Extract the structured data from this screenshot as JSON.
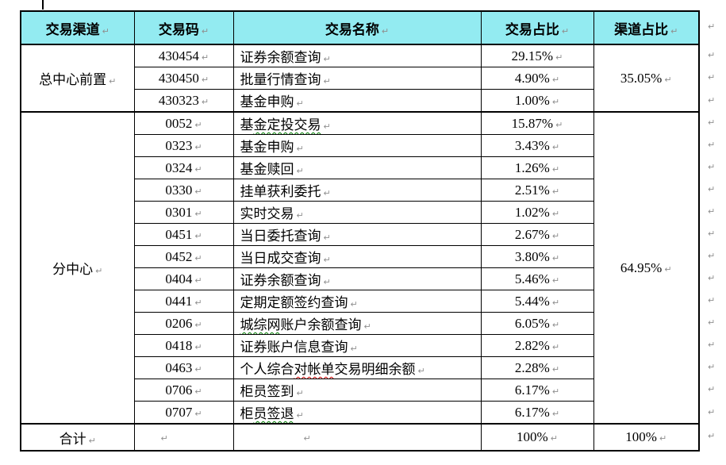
{
  "document": {
    "paragraph_mark": "↵",
    "cursor_visible": true
  },
  "colors": {
    "header_bg": "#93EBF1",
    "border": "#000000",
    "mark_gray": "#8f8f8f",
    "wavy_green": "#007d00",
    "wavy_red": "#d00000"
  },
  "table": {
    "header": {
      "columns": [
        "交易渠道",
        "交易码",
        "交易名称",
        "交易占比",
        "渠道占比"
      ]
    },
    "groups": [
      {
        "channel": "总中心前置",
        "channel_share": "35.05%",
        "rows": [
          {
            "code": "430454",
            "name": [
              {
                "t": "证券余额查询"
              }
            ],
            "share": "29.15%"
          },
          {
            "code": "430450",
            "name": [
              {
                "t": "批量行情查询"
              }
            ],
            "share": "4.90%"
          },
          {
            "code": "430323",
            "name": [
              {
                "t": "基金申购"
              }
            ],
            "share": "1.00%"
          }
        ]
      },
      {
        "channel": "分中心",
        "channel_share": "64.95%",
        "rows": [
          {
            "code": "0052",
            "name": [
              {
                "t": "基"
              },
              {
                "t": "金定投交易",
                "u": "green"
              }
            ],
            "share": "15.87%"
          },
          {
            "code": "0323",
            "name": [
              {
                "t": "基金申购"
              }
            ],
            "share": "3.43%"
          },
          {
            "code": "0324",
            "name": [
              {
                "t": "基金赎回"
              }
            ],
            "share": "1.26%"
          },
          {
            "code": "0330",
            "name": [
              {
                "t": "挂单获利委托"
              }
            ],
            "share": "2.51%"
          },
          {
            "code": "0301",
            "name": [
              {
                "t": "实时交易"
              }
            ],
            "share": "1.02%"
          },
          {
            "code": "0451",
            "name": [
              {
                "t": "当日委托查询"
              }
            ],
            "share": "2.67%"
          },
          {
            "code": "0452",
            "name": [
              {
                "t": "当日成交查询"
              }
            ],
            "share": "3.80%"
          },
          {
            "code": "0404",
            "name": [
              {
                "t": "证券余额查询"
              }
            ],
            "share": "5.46%"
          },
          {
            "code": "0441",
            "name": [
              {
                "t": "定期定额签约查询"
              }
            ],
            "share": "5.44%"
          },
          {
            "code": "0206",
            "name": [
              {
                "t": "城综网",
                "u": "green"
              },
              {
                "t": "账户余额查询"
              }
            ],
            "share": "6.05%"
          },
          {
            "code": "0418",
            "name": [
              {
                "t": "证券账户信息查询"
              }
            ],
            "share": "2.82%"
          },
          {
            "code": "0463",
            "name": [
              {
                "t": "个人综合"
              },
              {
                "t": "对帐单",
                "u": "red"
              },
              {
                "t": "交易明细余额"
              }
            ],
            "share": "2.28%"
          },
          {
            "code": "0706",
            "name": [
              {
                "t": "柜员签到"
              }
            ],
            "share": "6.17%"
          },
          {
            "code": "0707",
            "name": [
              {
                "t": "柜"
              },
              {
                "t": "员签退",
                "u": "green"
              }
            ],
            "share": "6.17%"
          }
        ]
      }
    ],
    "total": {
      "label": "合计",
      "transaction_share": "100%",
      "channel_share": "100%"
    }
  }
}
